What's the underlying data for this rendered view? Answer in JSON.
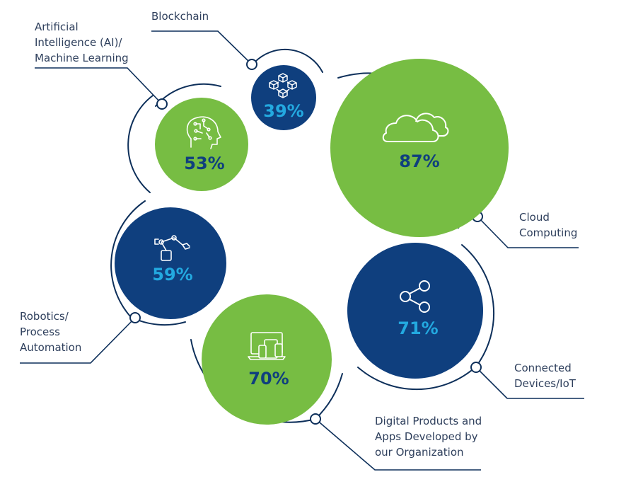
{
  "colors": {
    "green": "#77bd43",
    "navy": "#0f3f7e",
    "light_blue": "#23a9e0",
    "line": "#0d2f5a",
    "text": "#2e3f5c"
  },
  "items": [
    {
      "label": "Artificial\nIntelligence (AI)/\nMachine Learning",
      "value": "53%",
      "icon": "ai-head-icon"
    },
    {
      "label": "Blockchain",
      "value": "39%",
      "icon": "blockchain-icon"
    },
    {
      "label": "Cloud\nComputing",
      "value": "87%",
      "icon": "cloud-icon"
    },
    {
      "label": "Robotics/\nProcess\nAutomation",
      "value": "59%",
      "icon": "robot-arm-icon"
    },
    {
      "label": "Connected\nDevices/IoT",
      "value": "71%",
      "icon": "share-network-icon"
    },
    {
      "label": "Digital Products and\nApps Developed by\nour Organization",
      "value": "70%",
      "icon": "devices-icon"
    }
  ]
}
